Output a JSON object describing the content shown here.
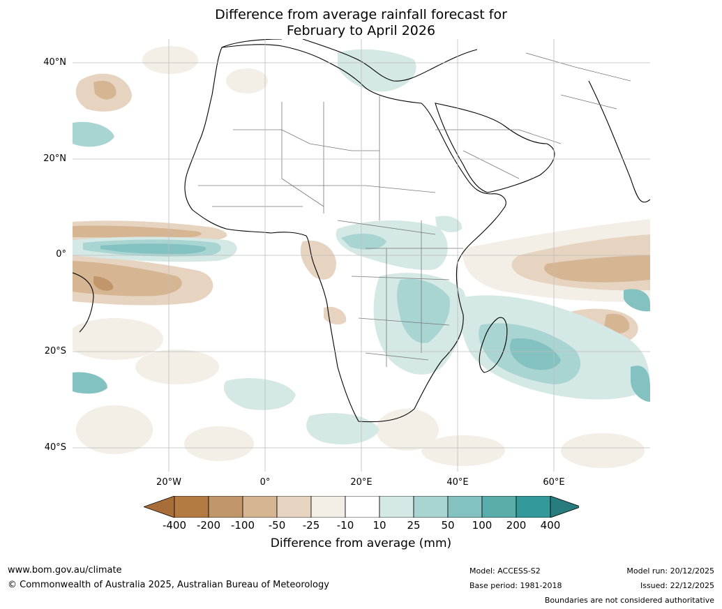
{
  "title": {
    "line1": "Difference from average rainfall forecast for",
    "line2": "February to April 2026"
  },
  "map": {
    "lat_labels": [
      "40°N",
      "20°N",
      "0°",
      "20°S",
      "40°S"
    ],
    "lon_labels": [
      "20°W",
      "0°",
      "20°E",
      "40°E",
      "60°E"
    ]
  },
  "colorbar": {
    "ticks": [
      "-400",
      "-200",
      "-100",
      "-50",
      "-25",
      "-10",
      "10",
      "25",
      "50",
      "100",
      "200",
      "400"
    ],
    "colors": [
      "#a86d38",
      "#b37a42",
      "#c2966b",
      "#d6b593",
      "#e6d3c0",
      "#f3eee6",
      "#ffffff",
      "#d4e8e6",
      "#a8d4d2",
      "#84c2c1",
      "#5aadab",
      "#34999a",
      "#287c7d"
    ],
    "label": "Difference from average (mm)"
  },
  "footer": {
    "website": "www.bom.gov.au/climate",
    "copyright": "© Commonwealth of Australia 2025, Australian Bureau of Meteorology",
    "model": "Model: ACCESS-S2",
    "base_period": "Base period: 1981-2018",
    "model_run": "Model run: 20/12/2025",
    "issued": "Issued: 22/12/2025",
    "disclaimer": "Boundaries are not considered authoritative"
  }
}
